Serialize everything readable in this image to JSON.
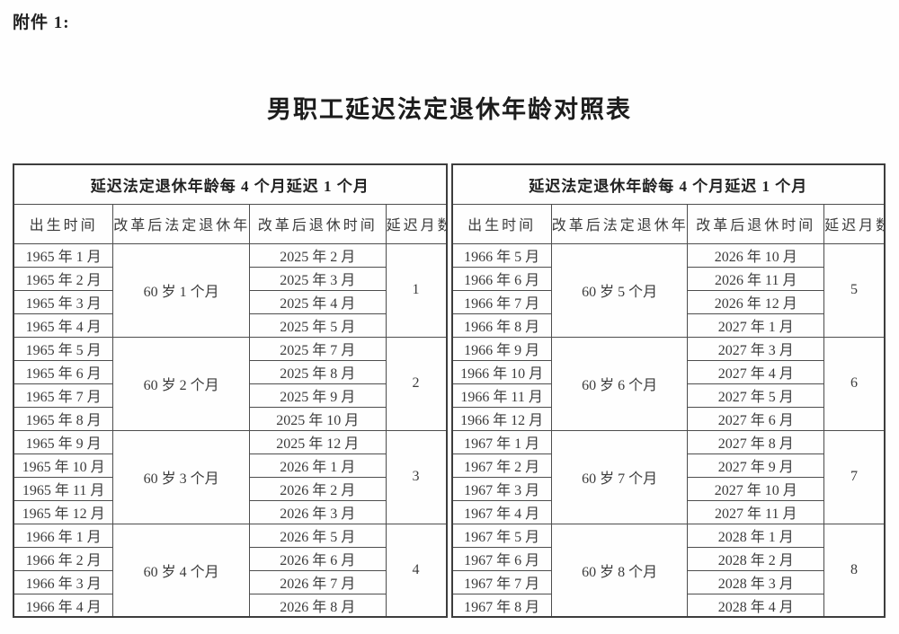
{
  "page": {
    "attachment_label": "附件 1:",
    "title": "男职工延迟法定退休年龄对照表"
  },
  "table": {
    "group_header": "延迟法定退休年龄每 4 个月延迟 1 个月",
    "columns": [
      "出生时间",
      "改革后法定退休年龄",
      "改革后退休时间",
      "延迟月数"
    ],
    "left_groups": [
      {
        "birth_months": [
          "1965 年 1 月",
          "1965 年 2 月",
          "1965 年 3 月",
          "1965 年 4 月"
        ],
        "retirement_age": "60 岁 1 个月",
        "retirement_months": [
          "2025 年 2 月",
          "2025 年 3 月",
          "2025 年 4 月",
          "2025 年 5 月"
        ],
        "delay_months": "1"
      },
      {
        "birth_months": [
          "1965 年 5 月",
          "1965 年 6 月",
          "1965 年 7 月",
          "1965 年 8 月"
        ],
        "retirement_age": "60 岁 2 个月",
        "retirement_months": [
          "2025 年 7 月",
          "2025 年 8 月",
          "2025 年 9 月",
          "2025 年 10 月"
        ],
        "delay_months": "2"
      },
      {
        "birth_months": [
          "1965 年 9 月",
          "1965 年 10 月",
          "1965 年 11 月",
          "1965 年 12 月"
        ],
        "retirement_age": "60 岁 3 个月",
        "retirement_months": [
          "2025 年 12 月",
          "2026 年 1 月",
          "2026 年 2 月",
          "2026 年 3 月"
        ],
        "delay_months": "3"
      },
      {
        "birth_months": [
          "1966 年 1 月",
          "1966 年 2 月",
          "1966 年 3 月",
          "1966 年 4 月"
        ],
        "retirement_age": "60 岁 4 个月",
        "retirement_months": [
          "2026 年 5 月",
          "2026 年 6 月",
          "2026 年 7 月",
          "2026 年 8 月"
        ],
        "delay_months": "4"
      }
    ],
    "right_groups": [
      {
        "birth_months": [
          "1966 年 5 月",
          "1966 年 6 月",
          "1966 年 7 月",
          "1966 年 8 月"
        ],
        "retirement_age": "60 岁 5 个月",
        "retirement_months": [
          "2026 年 10 月",
          "2026 年 11 月",
          "2026 年 12 月",
          "2027 年 1 月"
        ],
        "delay_months": "5"
      },
      {
        "birth_months": [
          "1966 年 9 月",
          "1966 年 10 月",
          "1966 年 11 月",
          "1966 年 12 月"
        ],
        "retirement_age": "60 岁 6 个月",
        "retirement_months": [
          "2027 年 3 月",
          "2027 年 4 月",
          "2027 年 5 月",
          "2027 年 6 月"
        ],
        "delay_months": "6"
      },
      {
        "birth_months": [
          "1967 年 1 月",
          "1967 年 2 月",
          "1967 年 3 月",
          "1967 年 4 月"
        ],
        "retirement_age": "60 岁 7 个月",
        "retirement_months": [
          "2027 年 8 月",
          "2027 年 9 月",
          "2027 年 10 月",
          "2027 年 11 月"
        ],
        "delay_months": "7"
      },
      {
        "birth_months": [
          "1967 年 5 月",
          "1967 年 6 月",
          "1967 年 7 月",
          "1967 年 8 月"
        ],
        "retirement_age": "60 岁 8 个月",
        "retirement_months": [
          "2028 年 1 月",
          "2028 年 2 月",
          "2028 年 3 月",
          "2028 年 4 月"
        ],
        "delay_months": "8"
      }
    ]
  }
}
